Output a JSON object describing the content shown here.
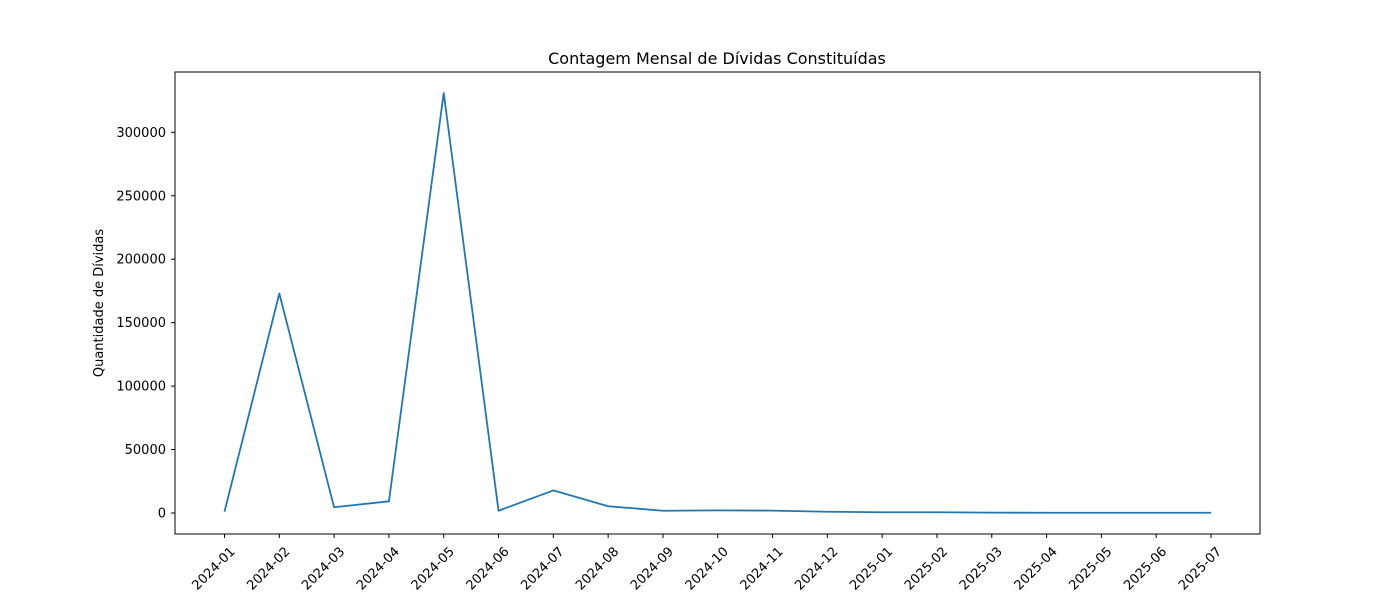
{
  "chart_data": {
    "type": "line",
    "title": "Contagem Mensal de Dívidas Constituídas",
    "xlabel": "",
    "ylabel": "Quantidade de Dívidas",
    "categories": [
      "2024-01",
      "2024-02",
      "2024-03",
      "2024-04",
      "2024-05",
      "2024-06",
      "2024-07",
      "2024-08",
      "2024-09",
      "2024-10",
      "2024-11",
      "2024-12",
      "2025-01",
      "2025-02",
      "2025-03",
      "2025-04",
      "2025-05",
      "2025-06",
      "2025-07"
    ],
    "series": [
      {
        "name": "Quantidade de Dívidas",
        "color": "#1f77b4",
        "values": [
          1000,
          173000,
          4500,
          9200,
          331000,
          1800,
          17800,
          5300,
          1800,
          2100,
          1900,
          1000,
          600,
          600,
          300,
          200,
          200,
          200,
          200
        ]
      }
    ],
    "yticks": [
      0,
      50000,
      100000,
      150000,
      200000,
      250000,
      300000
    ],
    "ytick_labels": [
      "0",
      "50000",
      "100000",
      "150000",
      "200000",
      "250000",
      "300000"
    ],
    "ylim": [
      -16550,
      347550
    ],
    "grid": false,
    "legend": "none"
  }
}
